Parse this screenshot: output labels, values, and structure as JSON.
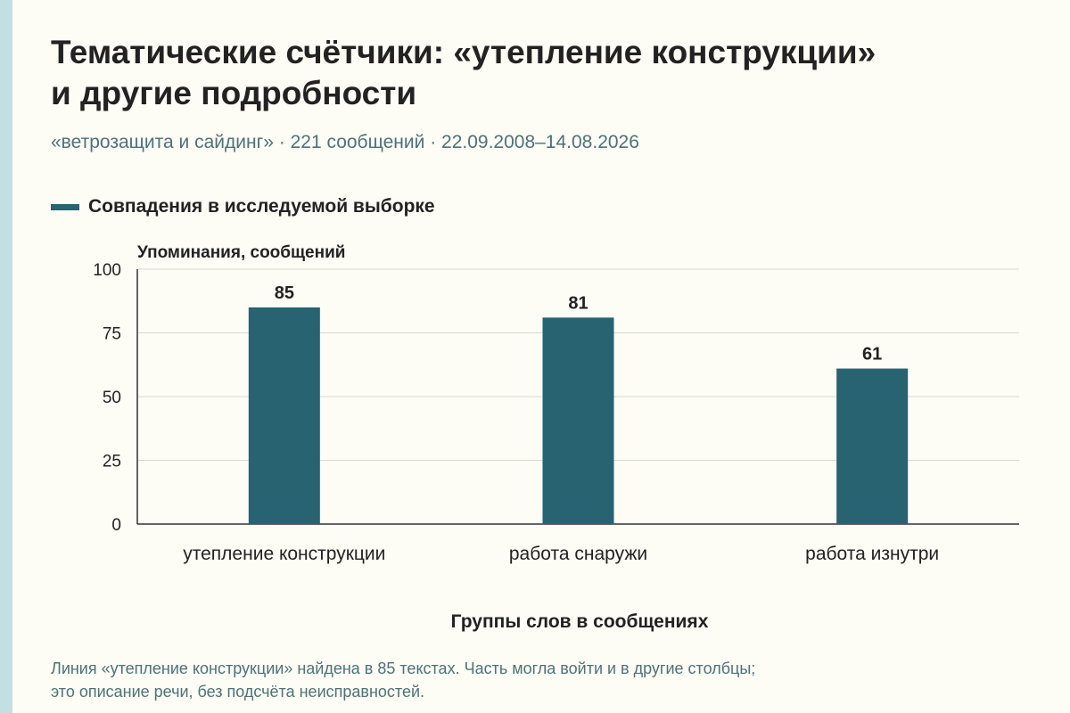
{
  "title": {
    "line1": "Тематические счётчики: «утепление конструкции»",
    "line2": "и другие подробности"
  },
  "subtitle": "«ветрозащита и сайдинг» · 221 сообщений · 22.09.2008–14.08.2026",
  "legend": {
    "label": "Совпадения в исследуемой выборке",
    "color": "#276370"
  },
  "footnote": {
    "line1": "Линия «утепление конструкции» найдена в 85 текстах. Часть могла войти и в другие столбцы;",
    "line2": "это описание речи, без подсчёта неисправностей."
  },
  "chart_data": {
    "type": "bar",
    "categories": [
      "утепление конструкции",
      "работа снаружи",
      "работа изнутри"
    ],
    "series": [
      {
        "name": "Совпадения в исследуемой выборке",
        "values": [
          85,
          81,
          61
        ]
      }
    ],
    "data_labels": [
      "85",
      "81",
      "61"
    ],
    "ylabel": "Упоминания, сообщений",
    "xlabel": "Группы слов в сообщениях",
    "ylim": [
      0,
      100
    ],
    "yticks": [
      0,
      25,
      50,
      75,
      100
    ],
    "grid": true,
    "legend_position": "top-left",
    "bar_color": "#276370"
  }
}
